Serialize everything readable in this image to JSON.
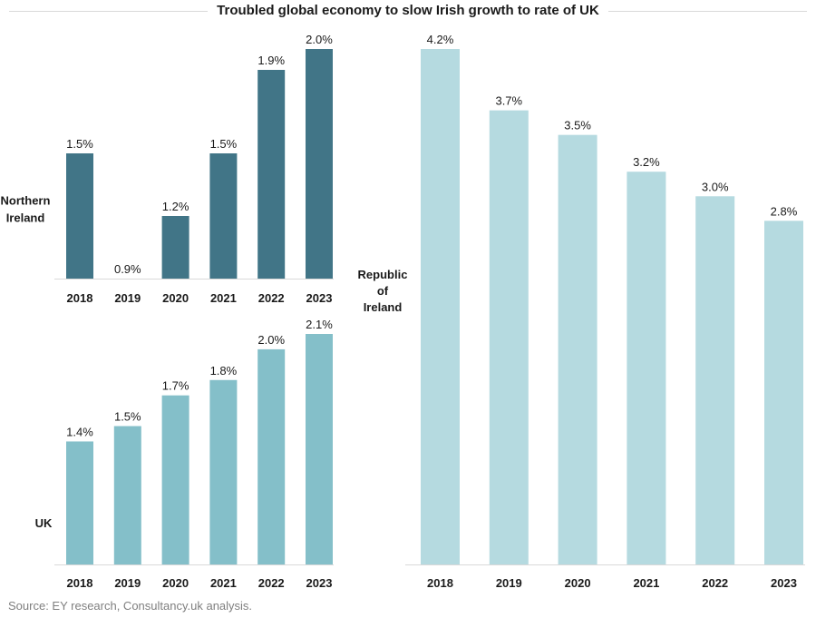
{
  "title": "Troubled global economy to slow Irish growth to rate of UK",
  "source": "Source: EY research, Consultancy.uk analysis.",
  "chart_data": [
    {
      "type": "bar",
      "region_label": [
        "Northern",
        "Ireland"
      ],
      "categories": [
        "2018",
        "2019",
        "2020",
        "2021",
        "2022",
        "2023"
      ],
      "values": [
        1.5,
        0.9,
        1.2,
        1.5,
        1.9,
        2.0
      ],
      "labels": [
        "1.5%",
        "0.9%",
        "1.2%",
        "1.5%",
        "1.9%",
        "2.0%"
      ],
      "ylim": [
        0.9,
        2.0
      ],
      "color": "#417587"
    },
    {
      "type": "bar",
      "region_label": [
        "UK"
      ],
      "categories": [
        "2018",
        "2019",
        "2020",
        "2021",
        "2022",
        "2023"
      ],
      "values": [
        1.4,
        1.5,
        1.7,
        1.8,
        2.0,
        2.1
      ],
      "labels": [
        "1.4%",
        "1.5%",
        "1.7%",
        "1.8%",
        "2.0%",
        "2.1%"
      ],
      "ylim": [
        0.8,
        2.1
      ],
      "color": "#84bfc9"
    },
    {
      "type": "bar",
      "region_label": [
        "Republic",
        "of",
        "Ireland"
      ],
      "categories": [
        "2018",
        "2019",
        "2020",
        "2021",
        "2022",
        "2023"
      ],
      "values": [
        4.2,
        3.7,
        3.5,
        3.2,
        3.0,
        2.8
      ],
      "labels": [
        "4.2%",
        "3.7%",
        "3.5%",
        "3.2%",
        "3.0%",
        "2.8%"
      ],
      "ylim": [
        0,
        4.2
      ],
      "color": "#b5dae0"
    }
  ]
}
